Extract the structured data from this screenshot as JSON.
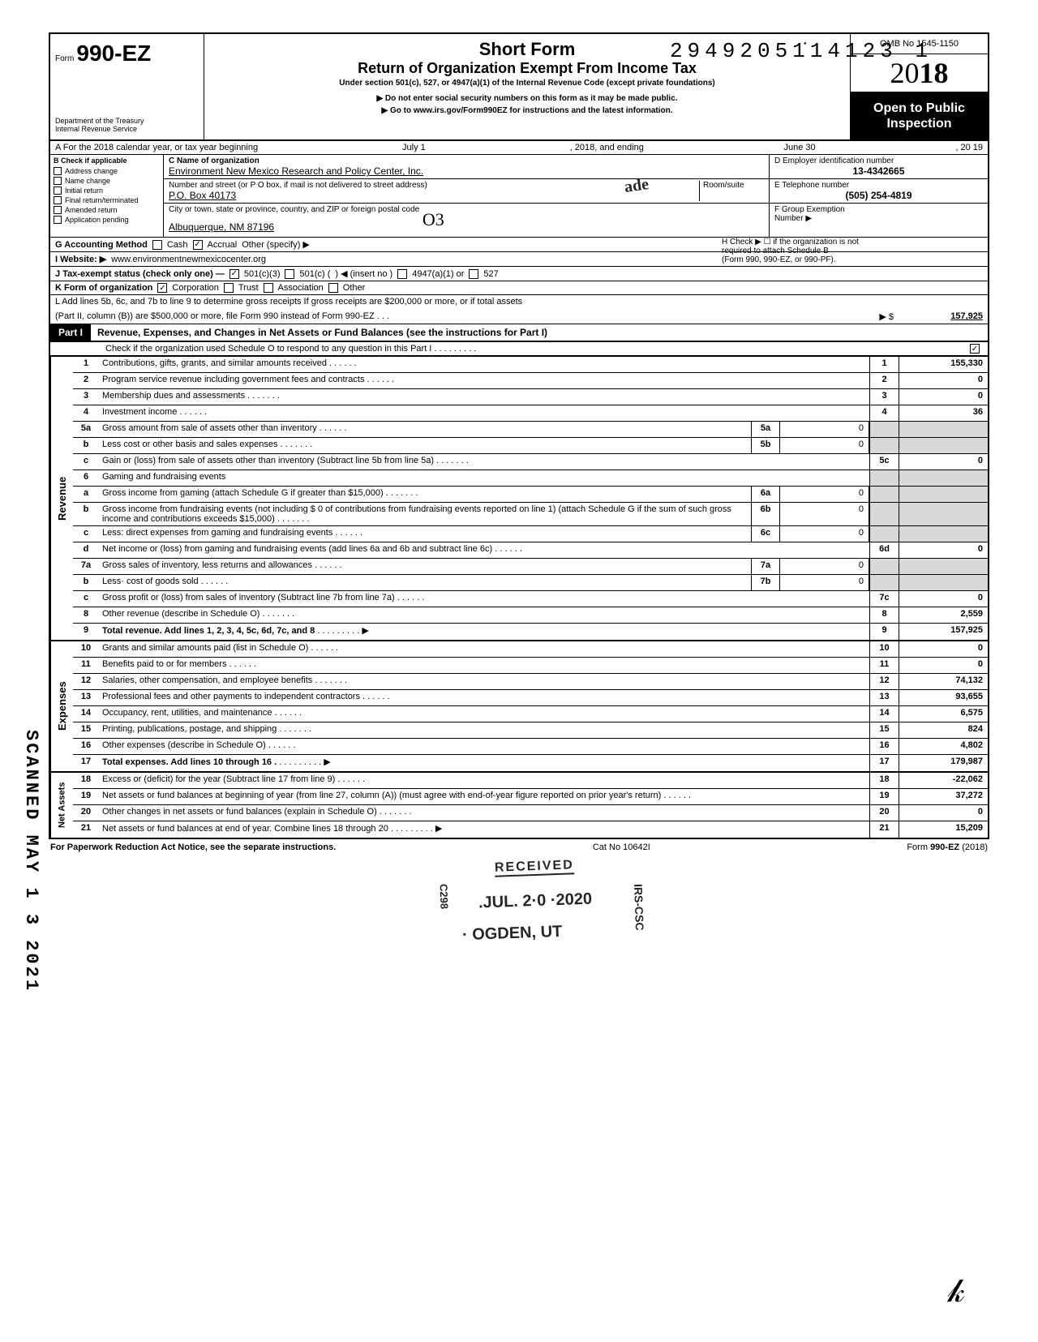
{
  "doc_number": "29492051̇14123  1",
  "header": {
    "form_prefix": "Form",
    "form_number": "990-EZ",
    "dept1": "Department of the Treasury",
    "dept2": "Internal Revenue Service",
    "short_form": "Short Form",
    "return_title": "Return of Organization Exempt From Income Tax",
    "under_section": "Under section 501(c), 527, or 4947(a)(1) of the Internal Revenue Code (except private foundations)",
    "arrow1": "▶ Do not enter social security numbers on this form as it may be made public.",
    "arrow2": "▶ Go to www.irs.gov/Form990EZ for instructions and the latest information.",
    "omb": "OMB No 1545-1150",
    "year_plain": "20",
    "year_bold": "18",
    "open1": "Open to Public",
    "open2": "Inspection"
  },
  "rowA": {
    "label": "A  For the 2018 calendar year, or tax year beginning",
    "begin": "July 1",
    "mid": ", 2018, and ending",
    "end_month": "June 30",
    "end_year": ", 20   19"
  },
  "colB": {
    "hdr": "B  Check if applicable",
    "items": [
      "Address change",
      "Name change",
      "Initial return",
      "Final return/terminated",
      "Amended return",
      "Application pending"
    ]
  },
  "colC": {
    "name_lbl": "C  Name of organization",
    "name_val": "Environment New Mexico Research and Policy Center, Inc.",
    "street_lbl": "Number and street (or P O  box, if mail is not delivered to street address)",
    "room_lbl": "Room/suite",
    "street_val": "P.O. Box 40173",
    "city_lbl": "City or town, state or province, country, and ZIP or foreign postal code",
    "city_val": "Albuquerque, NM 87196"
  },
  "colDE": {
    "d_lbl": "D Employer identification number",
    "d_val": "13-4342665",
    "e_lbl": "E Telephone number",
    "e_val": "(505) 254-4819",
    "f_lbl": "F Group Exemption",
    "f_lbl2": "Number ▶"
  },
  "rowG": {
    "lbl": "G  Accounting Method",
    "cash": "Cash",
    "accrual": "Accrual",
    "other": "Other (specify) ▶"
  },
  "rowH": {
    "txt1": "H  Check ▶ ☐ if the organization is not",
    "txt2": "required to attach Schedule B",
    "txt3": "(Form 990, 990-EZ, or 990-PF)."
  },
  "rowI": {
    "lbl": "I   Website: ▶",
    "val": "www.environmentnewmexicocenter.org"
  },
  "rowJ": {
    "lbl": "J  Tax-exempt status (check only one) —",
    "a": "501(c)(3)",
    "b": "501(c) (",
    "c": ") ◀ (insert no )",
    "d": "4947(a)(1) or",
    "e": "527"
  },
  "rowK": {
    "lbl": "K  Form of organization",
    "corp": "Corporation",
    "trust": "Trust",
    "assoc": "Association",
    "other": "Other"
  },
  "rowL": {
    "txt1": "L  Add lines 5b, 6c, and 7b to line 9 to determine gross receipts  If gross receipts are $200,000 or more, or if total assets",
    "txt2": "(Part II, column (B)) are $500,000 or more, file Form 990 instead of Form 990-EZ   .   .   .",
    "arrow": "▶   $",
    "val": "157,925"
  },
  "part1": {
    "hdr": "Part I",
    "title": "Revenue, Expenses, and Changes in Net Assets or Fund Balances (see the instructions for Part I)",
    "check_line": "Check if the organization used Schedule O to respond to any question in this Part I  .   .   .    .     .   .   .   .  .",
    "checked": "☑"
  },
  "sections": {
    "revenue": "Revenue",
    "expenses": "Expenses",
    "netassets": "Net Assets"
  },
  "lines": [
    {
      "n": "1",
      "t": "Contributions, gifts, grants, and similar amounts received",
      "box": "1",
      "val": "155,330"
    },
    {
      "n": "2",
      "t": "Program service revenue including government fees and contracts",
      "box": "2",
      "val": "0"
    },
    {
      "n": "3",
      "t": "Membership dues and assessments .",
      "box": "3",
      "val": "0"
    },
    {
      "n": "4",
      "t": "Investment income",
      "box": "4",
      "val": "36"
    },
    {
      "n": "5a",
      "t": "Gross amount from sale of assets other than inventory",
      "mb": "5a",
      "mv": "0"
    },
    {
      "n": "b",
      "t": "Less  cost or other basis and sales expenses .",
      "mb": "5b",
      "mv": "0"
    },
    {
      "n": "c",
      "t": "Gain or (loss) from sale of assets other than inventory (Subtract line 5b from line 5a)  .",
      "box": "5c",
      "val": "0"
    },
    {
      "n": "6",
      "t": "Gaming and fundraising events"
    },
    {
      "n": "a",
      "t": "Gross income from gaming (attach Schedule G if greater than $15,000) .",
      "mb": "6a",
      "mv": "0"
    },
    {
      "n": "b",
      "t": "Gross income from fundraising events (not including  $             0 of contributions from fundraising events reported on line 1) (attach Schedule G if the sum of such gross income and contributions exceeds $15,000) .",
      "mb": "6b",
      "mv": "0"
    },
    {
      "n": "c",
      "t": "Less: direct expenses from gaming and fundraising events",
      "mb": "6c",
      "mv": "0"
    },
    {
      "n": "d",
      "t": "Net income or (loss) from gaming and fundraising events (add lines 6a and 6b and subtract line 6c)",
      "box": "6d",
      "val": "0"
    },
    {
      "n": "7a",
      "t": "Gross sales of inventory, less returns and allowances",
      "mb": "7a",
      "mv": "0"
    },
    {
      "n": "b",
      "t": "Less· cost of goods sold",
      "mb": "7b",
      "mv": "0"
    },
    {
      "n": "c",
      "t": "Gross profit or (loss) from sales of inventory (Subtract line 7b from line 7a)",
      "box": "7c",
      "val": "0"
    },
    {
      "n": "8",
      "t": "Other revenue (describe in Schedule O) .",
      "box": "8",
      "val": "2,559"
    },
    {
      "n": "9",
      "t": "Total revenue. Add lines 1, 2, 3, 4, 5c, 6d, 7c, and 8",
      "box": "9",
      "val": "157,925",
      "bold": true,
      "arrow": true
    }
  ],
  "exp_lines": [
    {
      "n": "10",
      "t": "Grants and similar amounts paid (list in Schedule O)",
      "box": "10",
      "val": "0"
    },
    {
      "n": "11",
      "t": "Benefits paid to or for members",
      "box": "11",
      "val": "0"
    },
    {
      "n": "12",
      "t": "Salaries, other compensation, and employee benefits  .",
      "box": "12",
      "val": "74,132"
    },
    {
      "n": "13",
      "t": "Professional fees and other payments to independent contractors",
      "box": "13",
      "val": "93,655"
    },
    {
      "n": "14",
      "t": "Occupancy, rent, utilities, and maintenance",
      "box": "14",
      "val": "6,575"
    },
    {
      "n": "15",
      "t": "Printing, publications, postage, and shipping .",
      "box": "15",
      "val": "824"
    },
    {
      "n": "16",
      "t": "Other expenses (describe in Schedule O)",
      "box": "16",
      "val": "4,802"
    },
    {
      "n": "17",
      "t": "Total expenses. Add lines 10 through 16 .",
      "box": "17",
      "val": "179,987",
      "bold": true,
      "arrow": true
    }
  ],
  "na_lines": [
    {
      "n": "18",
      "t": "Excess or (deficit) for the year (Subtract line 17 from line 9)",
      "box": "18",
      "val": "-22,062"
    },
    {
      "n": "19",
      "t": "Net assets or fund balances at beginning of year (from line 27, column (A)) (must agree with end-of-year figure reported on prior year's return)",
      "box": "19",
      "val": "37,272"
    },
    {
      "n": "20",
      "t": "Other changes in net assets or fund balances (explain in Schedule O) .",
      "box": "20",
      "val": "0"
    },
    {
      "n": "21",
      "t": "Net assets or fund balances at end of year. Combine lines 18 through 20",
      "box": "21",
      "val": "15,209",
      "arrow": true
    }
  ],
  "stamps": {
    "received": "RECEIVED",
    "date": ".JUL. 2·0 ·2020",
    "ogden": "· OGDEN, UT",
    "irs_csc": "IRS-CSC",
    "c298": "C298"
  },
  "side_stamp": "SCANNED MAY 1 3 2021",
  "hand_o3": "O3",
  "hand_sig": "✎",
  "hand_top": "ade",
  "footer": {
    "left": "For Paperwork Reduction Act Notice, see the separate instructions.",
    "mid": "Cat No 10642I",
    "right_plain": "Form ",
    "right_bold": "990-EZ",
    "right_year": " (2018)"
  }
}
